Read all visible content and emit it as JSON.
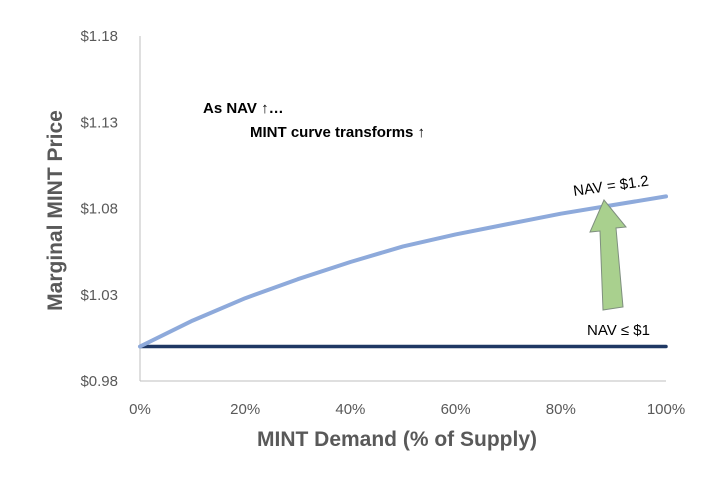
{
  "chart_data": {
    "type": "line",
    "title": "",
    "xlabel": "MINT Demand (% of Supply)",
    "ylabel": "Marginal MINT Price",
    "xlim": [
      0,
      100
    ],
    "ylim": [
      0.98,
      1.18
    ],
    "x_ticks": [
      0,
      20,
      40,
      60,
      80,
      100
    ],
    "x_tick_labels": [
      "0%",
      "20%",
      "40%",
      "60%",
      "80%",
      "100%"
    ],
    "y_ticks": [
      0.98,
      1.03,
      1.08,
      1.13,
      1.18
    ],
    "y_tick_labels": [
      "$0.98",
      "$1.03",
      "$1.08",
      "$1.13",
      "$1.18"
    ],
    "grid": false,
    "legend": "none",
    "series": [
      {
        "name": "NAV = $1.2",
        "color": "#8eaadb",
        "x": [
          0,
          10,
          20,
          30,
          40,
          50,
          60,
          70,
          80,
          90,
          100
        ],
        "y": [
          1.0,
          1.015,
          1.028,
          1.039,
          1.049,
          1.058,
          1.065,
          1.071,
          1.077,
          1.082,
          1.087
        ]
      },
      {
        "name": "NAV ≤ $1",
        "color": "#1f3864",
        "x": [
          0,
          100
        ],
        "y": [
          1.0,
          1.0
        ]
      }
    ],
    "annotations": {
      "line1": "As NAV ↑…",
      "line2": "MINT curve transforms ↑"
    },
    "arrow_color": "#a9d08e"
  }
}
